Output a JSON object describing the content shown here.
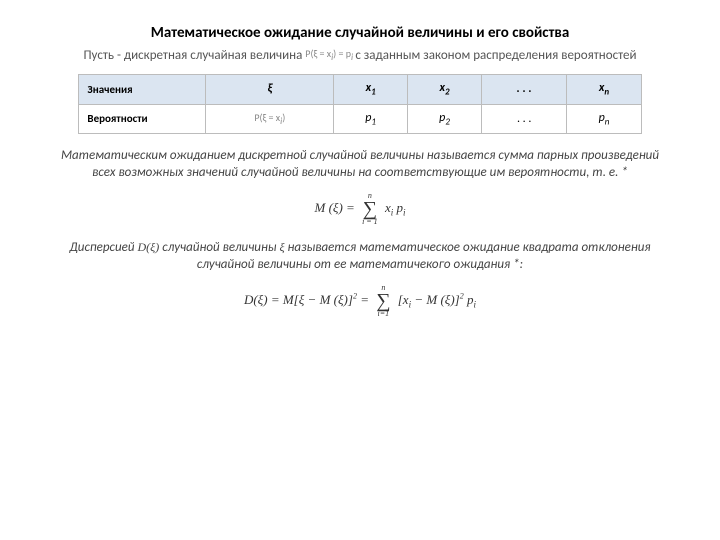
{
  "title": "Математическое ожидание случайной величины и его свойства",
  "intro_pre": "Пусть - дискретная случайная величина",
  "intro_mid": "P(ξ = x",
  "intro_mid2": ") = p",
  "intro_post": "с заданным законом распределения вероятностей",
  "table": {
    "row1_label": "Значения",
    "row1_sym": "ξ",
    "row2_label": "Вероятности",
    "row2_sym": "P(ξ = x",
    "row2_sym2": ")",
    "cols": {
      "x1": "x",
      "x1s": "1",
      "x2": "x",
      "x2s": "2",
      "xn": "x",
      "xns": "n",
      "p1": "p",
      "p1s": "1",
      "p2": "p",
      "p2s": "2",
      "pn": "p",
      "pns": "n",
      "dots": ". . ."
    }
  },
  "def1": "Математическим ожиданием дискретной случайной величины называется сумма парных произведений всех возможных значений случайной величины на соответствующие им вероятности, т. е. *",
  "formula1": {
    "lhs": "M (ξ) = ",
    "sum_top": "n",
    "sum_bot": "i = 1",
    "rhs": " x",
    "rhs_sub": "i",
    "rhs2": " p",
    "rhs2_sub": "i"
  },
  "def2_pre": "Дисперсией ",
  "def2_dxi": "D(ξ)",
  "def2_mid": " случайной величины",
  "def2_sym": "ξ",
  "def2_post": " называется математическое ожидание квадрата отклонения случайной величины от ее математичекого ожидания *:",
  "formula2": {
    "lhs1": "D(ξ) = M[ξ − M (ξ)]",
    "sq1": "2",
    "eq": " = ",
    "sum_top": "n",
    "sum_bot": "i=1",
    "br_open": "[x",
    "xi_sub": "i",
    "mid": " − M (ξ)]",
    "sq2": "2",
    "p": " p",
    "p_sub": "i"
  }
}
